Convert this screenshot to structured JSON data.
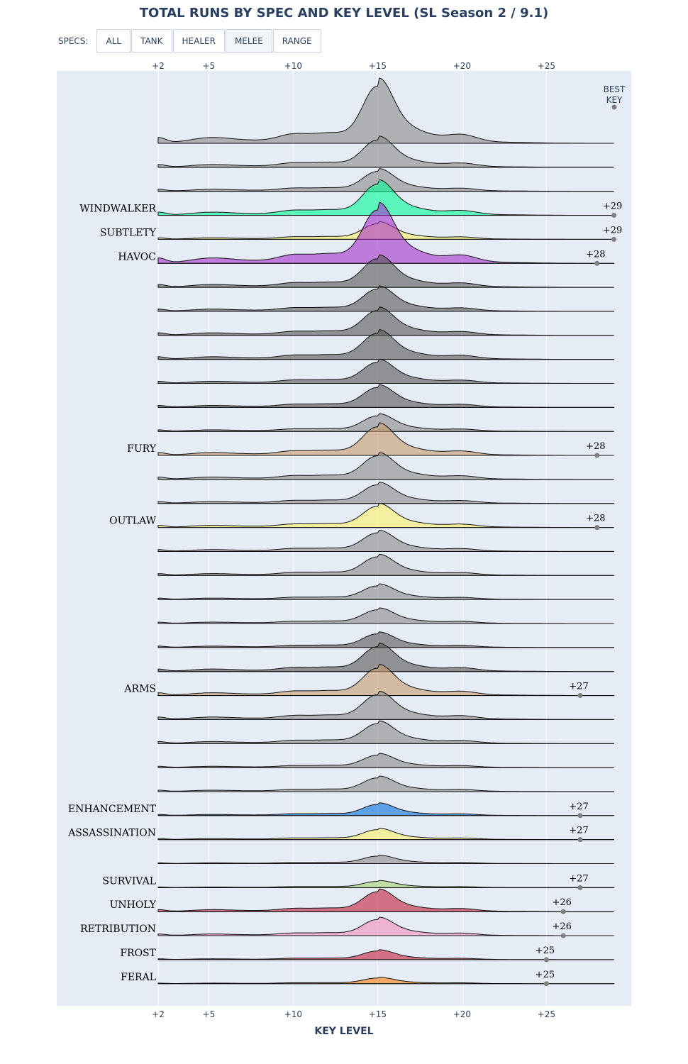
{
  "chart_data": {
    "type": "ridgeline",
    "title": "TOTAL RUNS BY SPEC AND KEY LEVEL (SL Season 2 / 9.1)",
    "xlabel": "KEY LEVEL",
    "ylabel": "",
    "x_range": [
      2,
      29
    ],
    "x_ticks": [
      {
        "value": 2,
        "label": "+2"
      },
      {
        "value": 5,
        "label": "+5"
      },
      {
        "value": 10,
        "label": "+10"
      },
      {
        "value": 15,
        "label": "+15"
      },
      {
        "value": 20,
        "label": "+20"
      },
      {
        "value": 25,
        "label": "+25"
      }
    ],
    "grid": true,
    "best_key_header": [
      "BEST",
      "KEY"
    ],
    "rows": [
      {
        "label": "",
        "color": "#888888",
        "height": 92,
        "best": null,
        "best_label": ""
      },
      {
        "label": "",
        "color": "#888888",
        "height": 44,
        "best": null,
        "best_label": ""
      },
      {
        "label": "",
        "color": "#888888",
        "height": 32,
        "best": null,
        "best_label": ""
      },
      {
        "label": "WINDWALKER",
        "color": "#00ff96",
        "height": 50,
        "best": 29,
        "best_label": "+29"
      },
      {
        "label": "SUBTLETY",
        "color": "#fff468",
        "height": 25,
        "best": 29,
        "best_label": "+29"
      },
      {
        "label": "HAVOC",
        "color": "#a330c9",
        "height": 86,
        "best": 28,
        "best_label": "+28"
      },
      {
        "label": "",
        "color": "#555555",
        "height": 46,
        "best": null,
        "best_label": ""
      },
      {
        "label": "",
        "color": "#555555",
        "height": 36,
        "best": null,
        "best_label": ""
      },
      {
        "label": "",
        "color": "#555555",
        "height": 40,
        "best": null,
        "best_label": ""
      },
      {
        "label": "",
        "color": "#555555",
        "height": 42,
        "best": null,
        "best_label": ""
      },
      {
        "label": "",
        "color": "#555555",
        "height": 34,
        "best": null,
        "best_label": ""
      },
      {
        "label": "",
        "color": "#555555",
        "height": 32,
        "best": null,
        "best_label": ""
      },
      {
        "label": "",
        "color": "#888888",
        "height": 25,
        "best": null,
        "best_label": ""
      },
      {
        "label": "FURY",
        "color": "#c69b6d",
        "height": 46,
        "best": 28,
        "best_label": "+28"
      },
      {
        "label": "",
        "color": "#888888",
        "height": 38,
        "best": null,
        "best_label": ""
      },
      {
        "label": "",
        "color": "#888888",
        "height": 30,
        "best": null,
        "best_label": ""
      },
      {
        "label": "OUTLAW",
        "color": "#fff468",
        "height": 34,
        "best": 28,
        "best_label": "+28"
      },
      {
        "label": "",
        "color": "#888888",
        "height": 30,
        "best": null,
        "best_label": ""
      },
      {
        "label": "",
        "color": "#888888",
        "height": 30,
        "best": null,
        "best_label": ""
      },
      {
        "label": "",
        "color": "#888888",
        "height": 22,
        "best": null,
        "best_label": ""
      },
      {
        "label": "",
        "color": "#888888",
        "height": 22,
        "best": null,
        "best_label": ""
      },
      {
        "label": "",
        "color": "#555555",
        "height": 22,
        "best": null,
        "best_label": ""
      },
      {
        "label": "",
        "color": "#555555",
        "height": 40,
        "best": null,
        "best_label": ""
      },
      {
        "label": "ARMS",
        "color": "#c69b6d",
        "height": 44,
        "best": 27,
        "best_label": "+27"
      },
      {
        "label": "",
        "color": "#888888",
        "height": 40,
        "best": null,
        "best_label": ""
      },
      {
        "label": "",
        "color": "#888888",
        "height": 32,
        "best": null,
        "best_label": ""
      },
      {
        "label": "",
        "color": "#888888",
        "height": 20,
        "best": null,
        "best_label": ""
      },
      {
        "label": "",
        "color": "#888888",
        "height": 22,
        "best": null,
        "best_label": ""
      },
      {
        "label": "ENHANCEMENT",
        "color": "#0070dd",
        "height": 18,
        "best": 27,
        "best_label": "+27"
      },
      {
        "label": "ASSASSINATION",
        "color": "#fff468",
        "height": 16,
        "best": 27,
        "best_label": "+27"
      },
      {
        "label": "",
        "color": "#888888",
        "height": 12,
        "best": null,
        "best_label": ""
      },
      {
        "label": "SURVIVAL",
        "color": "#aad372",
        "height": 10,
        "best": 27,
        "best_label": "+27"
      },
      {
        "label": "UNHOLY",
        "color": "#c41e3a",
        "height": 32,
        "best": 26,
        "best_label": "+26"
      },
      {
        "label": "RETRIBUTION",
        "color": "#f48cba",
        "height": 26,
        "best": 26,
        "best_label": "+26"
      },
      {
        "label": "FROST",
        "color": "#c41e3a",
        "height": 14,
        "best": 25,
        "best_label": "+25"
      },
      {
        "label": "FERAL",
        "color": "#ff7c0a",
        "height": 9,
        "best": 25,
        "best_label": "+25"
      }
    ]
  },
  "filter": {
    "label": "SPECS:",
    "buttons": [
      {
        "label": "ALL",
        "active": false
      },
      {
        "label": "TANK",
        "active": false
      },
      {
        "label": "HEALER",
        "active": false
      },
      {
        "label": "MELEE",
        "active": true
      },
      {
        "label": "RANGE",
        "active": false
      }
    ]
  }
}
